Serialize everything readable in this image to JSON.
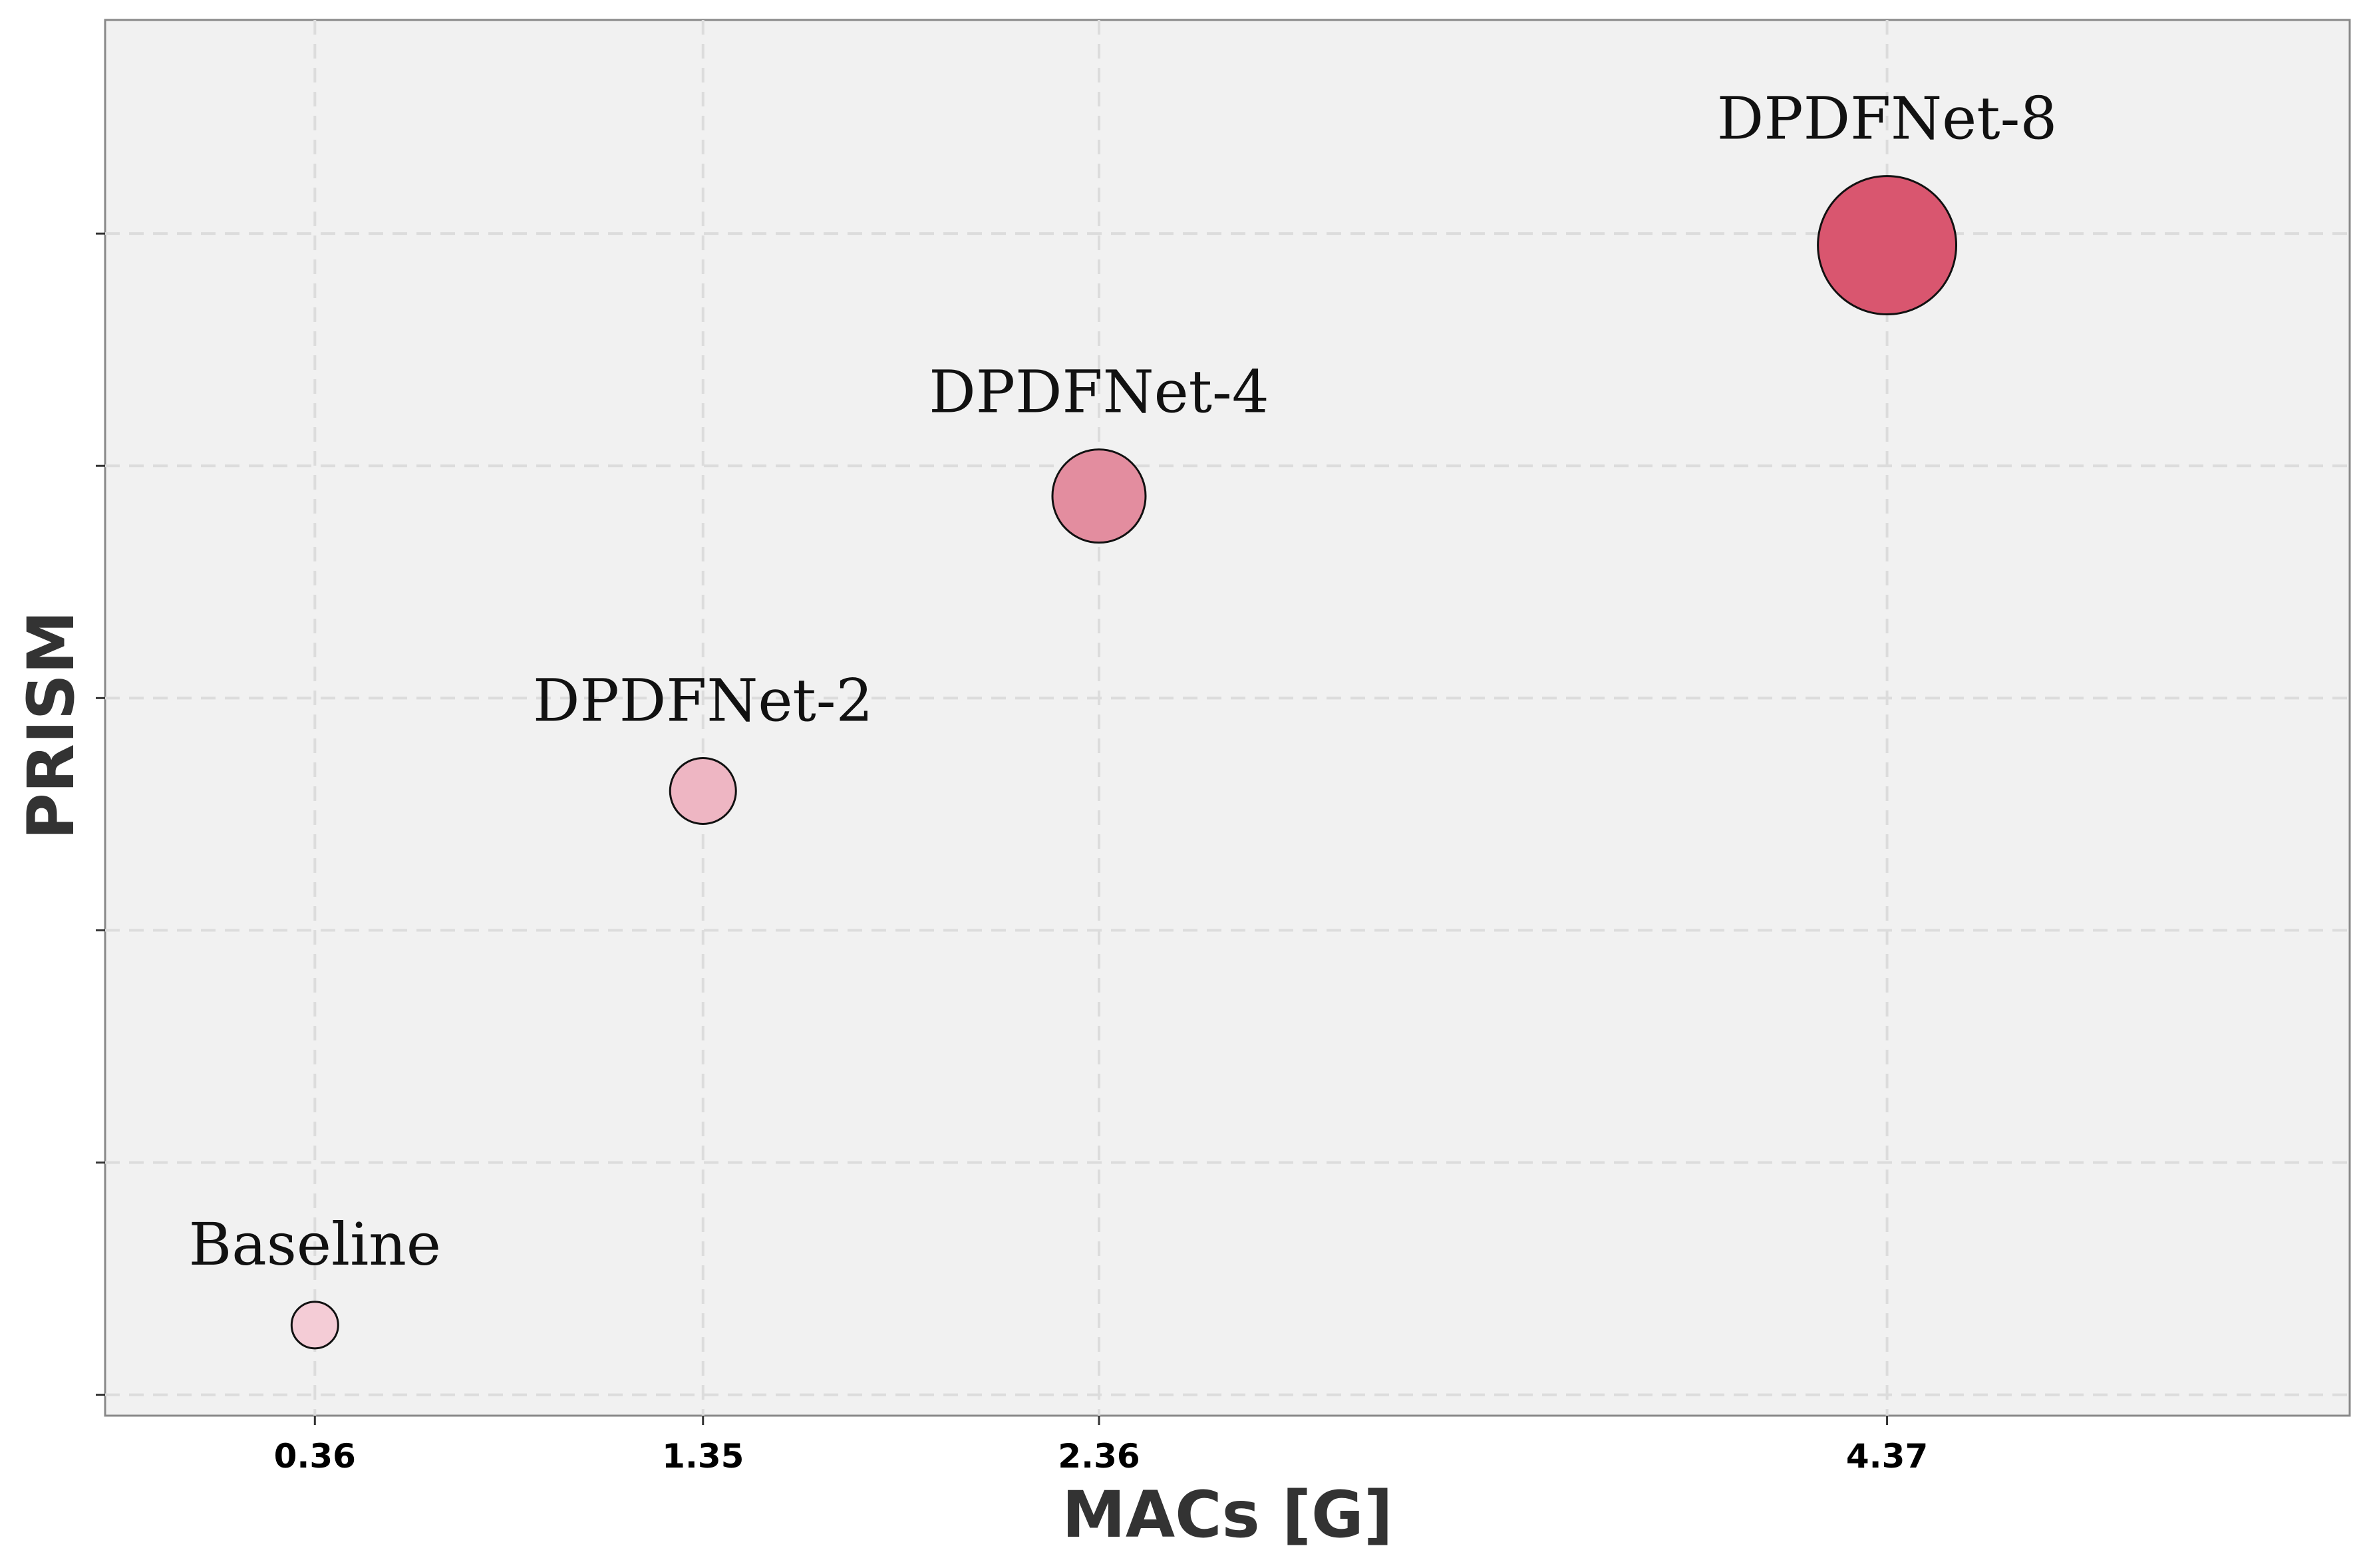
{
  "chart_data": {
    "type": "scatter",
    "title": "",
    "xlabel": "MACs [G]",
    "ylabel": "PRISM",
    "x_ticks": [
      "0.36",
      "1.35",
      "2.36",
      "4.37"
    ],
    "y_ticks": [
      "",
      "",
      "",
      "",
      "",
      ""
    ],
    "grid": true,
    "points": [
      {
        "label": "Baseline",
        "x": 0.36,
        "y": 0.3,
        "bubble_size": 1.0,
        "color": "#f4ccd6"
      },
      {
        "label": "DPDFNet-2",
        "x": 1.35,
        "y": 2.6,
        "bubble_size": 2.0,
        "color": "#eeb6c3"
      },
      {
        "label": "DPDFNet-4",
        "x": 2.36,
        "y": 3.87,
        "bubble_size": 4.0,
        "color": "#e38d9f"
      },
      {
        "label": "DPDFNet-8",
        "x": 4.37,
        "y": 4.95,
        "bubble_size": 8.0,
        "color": "#d9566f"
      }
    ]
  }
}
